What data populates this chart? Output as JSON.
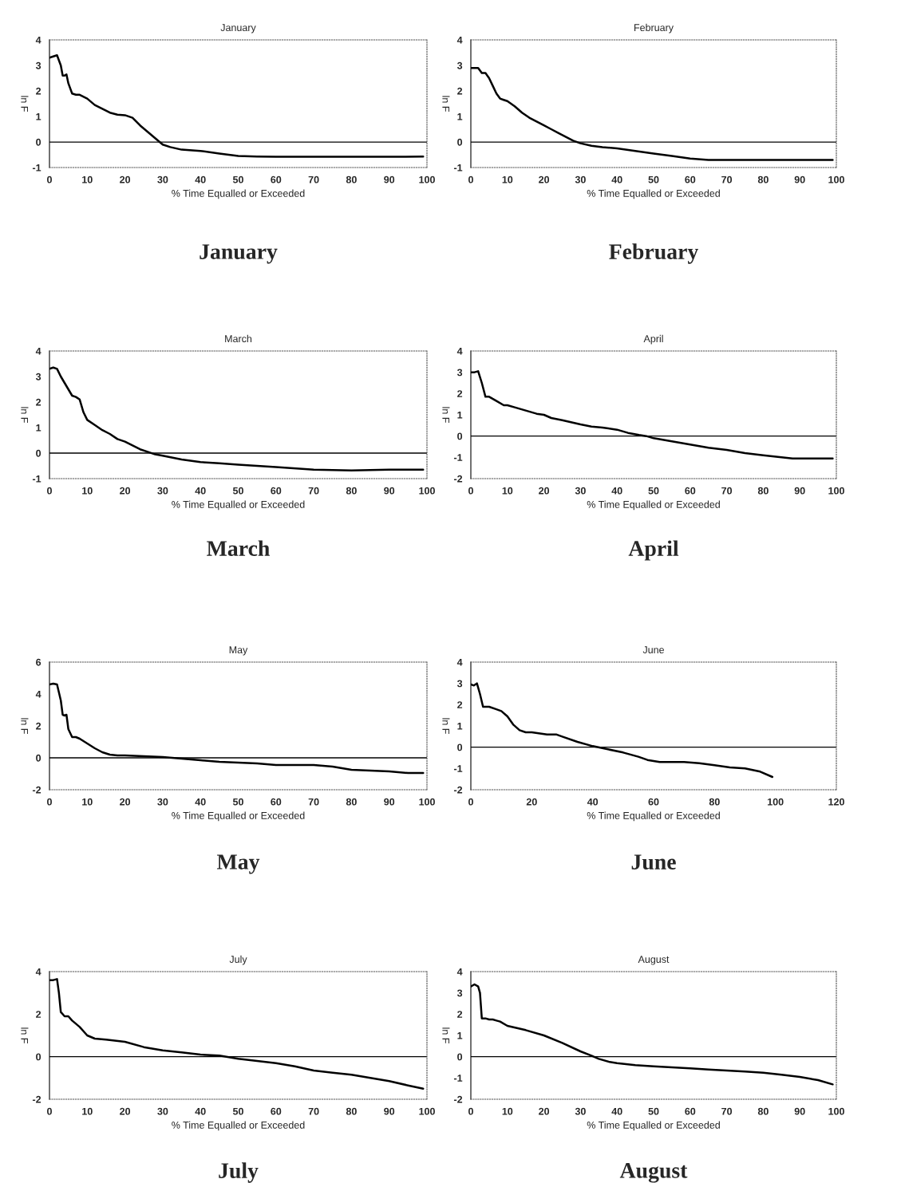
{
  "chart_data": [
    {
      "type": "line",
      "title": "January",
      "xlabel": "% Time Equalled or Exceeded",
      "ylabel": "ln F",
      "xlim": [
        0,
        100
      ],
      "xticks": [
        0,
        10,
        20,
        30,
        40,
        50,
        60,
        70,
        80,
        90,
        100
      ],
      "ylim": [
        -1,
        4
      ],
      "yticks": [
        -1,
        0,
        1,
        2,
        3,
        4
      ],
      "ref_lines": [
        {
          "axis": "y",
          "value": 0,
          "color": "#000000"
        }
      ],
      "annotations": [
        "January"
      ],
      "x": [
        0,
        1,
        2,
        3,
        3.5,
        4,
        4.5,
        5,
        6,
        7,
        8,
        10,
        12,
        14,
        16,
        18,
        20,
        22,
        24,
        26,
        28,
        30,
        32,
        35,
        40,
        45,
        50,
        55,
        60,
        70,
        80,
        90,
        99
      ],
      "series": [
        {
          "color": "#000000",
          "values": [
            3.3,
            3.35,
            3.4,
            3.0,
            2.6,
            2.6,
            2.65,
            2.3,
            1.9,
            1.85,
            1.85,
            1.7,
            1.45,
            1.3,
            1.15,
            1.07,
            1.05,
            0.95,
            0.65,
            0.4,
            0.15,
            -0.1,
            -0.2,
            -0.3,
            -0.35,
            -0.45,
            -0.55,
            -0.57,
            -0.58,
            -0.58,
            -0.58,
            -0.58,
            -0.57
          ]
        }
      ]
    },
    {
      "type": "line",
      "title": "February",
      "xlabel": "% Time Equalled or Exceeded",
      "ylabel": "ln F",
      "xlim": [
        0,
        100
      ],
      "xticks": [
        0,
        10,
        20,
        30,
        40,
        50,
        60,
        70,
        80,
        90,
        100
      ],
      "ylim": [
        -1,
        4
      ],
      "yticks": [
        -1,
        0,
        1,
        2,
        3,
        4
      ],
      "ref_lines": [
        {
          "axis": "y",
          "value": 0,
          "color": "#000000"
        }
      ],
      "annotations": [
        "February"
      ],
      "x": [
        0,
        1,
        2,
        3,
        4,
        5,
        6,
        7,
        8,
        9,
        10,
        12,
        14,
        16,
        18,
        20,
        22,
        24,
        26,
        28,
        30,
        33,
        36,
        40,
        45,
        50,
        55,
        60,
        65,
        70,
        80,
        90,
        99
      ],
      "series": [
        {
          "color": "#000000",
          "values": [
            2.9,
            2.9,
            2.9,
            2.7,
            2.7,
            2.5,
            2.2,
            1.9,
            1.7,
            1.65,
            1.6,
            1.4,
            1.15,
            0.95,
            0.8,
            0.65,
            0.5,
            0.35,
            0.2,
            0.05,
            -0.05,
            -0.15,
            -0.2,
            -0.25,
            -0.35,
            -0.45,
            -0.55,
            -0.65,
            -0.7,
            -0.7,
            -0.7,
            -0.7,
            -0.7
          ]
        }
      ]
    },
    {
      "type": "line",
      "title": "March",
      "xlabel": "% Time Equalled or Exceeded",
      "ylabel": "ln F",
      "xlim": [
        0,
        100
      ],
      "xticks": [
        0,
        10,
        20,
        30,
        40,
        50,
        60,
        70,
        80,
        90,
        100
      ],
      "ylim": [
        -1,
        4
      ],
      "yticks": [
        -1,
        0,
        1,
        2,
        3,
        4
      ],
      "ref_lines": [
        {
          "axis": "y",
          "value": 0,
          "color": "#000000"
        }
      ],
      "annotations": [
        "March"
      ],
      "x": [
        0,
        1,
        2,
        3,
        4,
        5,
        6,
        7,
        8,
        9,
        10,
        12,
        14,
        16,
        18,
        20,
        22,
        24,
        26,
        28,
        30,
        35,
        40,
        45,
        50,
        55,
        60,
        70,
        80,
        90,
        99
      ],
      "series": [
        {
          "color": "#000000",
          "values": [
            3.3,
            3.35,
            3.3,
            3.0,
            2.75,
            2.5,
            2.25,
            2.2,
            2.1,
            1.6,
            1.3,
            1.1,
            0.9,
            0.75,
            0.55,
            0.45,
            0.3,
            0.15,
            0.05,
            -0.05,
            -0.1,
            -0.25,
            -0.35,
            -0.4,
            -0.45,
            -0.5,
            -0.55,
            -0.65,
            -0.68,
            -0.65,
            -0.65
          ]
        }
      ]
    },
    {
      "type": "line",
      "title": "April",
      "xlabel": "% Time Equalled or Exceeded",
      "ylabel": "ln F",
      "xlim": [
        0,
        100
      ],
      "xticks": [
        0,
        10,
        20,
        30,
        40,
        50,
        60,
        70,
        80,
        90,
        100
      ],
      "ylim": [
        -2,
        4
      ],
      "yticks": [
        -2,
        -1,
        0,
        1,
        2,
        3,
        4
      ],
      "ref_lines": [
        {
          "axis": "y",
          "value": 0,
          "color": "#000000"
        }
      ],
      "annotations": [
        "April"
      ],
      "x": [
        0,
        1,
        2,
        3,
        4,
        5,
        7,
        9,
        10,
        12,
        15,
        18,
        20,
        22,
        25,
        30,
        33,
        36,
        40,
        43,
        46,
        48,
        50,
        55,
        60,
        65,
        70,
        75,
        80,
        85,
        88,
        90,
        95,
        99
      ],
      "series": [
        {
          "color": "#000000",
          "values": [
            3.0,
            3.0,
            3.05,
            2.5,
            1.85,
            1.85,
            1.65,
            1.45,
            1.45,
            1.35,
            1.2,
            1.05,
            1.0,
            0.85,
            0.75,
            0.55,
            0.45,
            0.4,
            0.3,
            0.15,
            0.05,
            0.0,
            -0.1,
            -0.25,
            -0.4,
            -0.55,
            -0.65,
            -0.8,
            -0.9,
            -1.0,
            -1.05,
            -1.05,
            -1.05,
            -1.05
          ]
        }
      ]
    },
    {
      "type": "line",
      "title": "May",
      "xlabel": "% Time Equalled or Exceeded",
      "ylabel": "ln F",
      "xlim": [
        0,
        100
      ],
      "xticks": [
        0,
        10,
        20,
        30,
        40,
        50,
        60,
        70,
        80,
        90,
        100
      ],
      "ylim": [
        -2,
        6
      ],
      "yticks": [
        -2,
        0,
        2,
        4,
        6
      ],
      "ref_lines": [
        {
          "axis": "y",
          "value": 0,
          "color": "#000000"
        }
      ],
      "annotations": [
        "May"
      ],
      "x": [
        0,
        1,
        2,
        3,
        3.5,
        4,
        4.5,
        5,
        6,
        7,
        8,
        10,
        12,
        14,
        16,
        18,
        20,
        25,
        30,
        35,
        40,
        45,
        50,
        55,
        60,
        65,
        70,
        75,
        80,
        85,
        90,
        95,
        99
      ],
      "series": [
        {
          "color": "#000000",
          "values": [
            4.6,
            4.65,
            4.6,
            3.6,
            2.7,
            2.65,
            2.7,
            1.8,
            1.3,
            1.3,
            1.2,
            0.9,
            0.6,
            0.35,
            0.2,
            0.15,
            0.15,
            0.1,
            0.05,
            -0.05,
            -0.15,
            -0.25,
            -0.3,
            -0.35,
            -0.45,
            -0.45,
            -0.45,
            -0.55,
            -0.75,
            -0.8,
            -0.85,
            -0.95,
            -0.95
          ]
        }
      ]
    },
    {
      "type": "line",
      "title": "June",
      "xlabel": "% Time Equalled or Exceeded",
      "ylabel": "ln F",
      "xlim": [
        0,
        120
      ],
      "xticks": [
        0,
        20,
        40,
        60,
        80,
        100,
        120
      ],
      "ylim": [
        -2,
        4
      ],
      "yticks": [
        -2,
        -1,
        0,
        1,
        2,
        3,
        4
      ],
      "ref_lines": [
        {
          "axis": "y",
          "value": 0,
          "color": "#000000"
        }
      ],
      "annotations": [
        "June"
      ],
      "x": [
        0,
        1,
        2,
        3,
        4,
        6,
        8,
        10,
        12,
        14,
        16,
        18,
        20,
        25,
        28,
        30,
        35,
        40,
        45,
        50,
        55,
        58,
        62,
        65,
        70,
        75,
        80,
        85,
        90,
        95,
        99
      ],
      "series": [
        {
          "color": "#000000",
          "values": [
            2.95,
            2.9,
            3.0,
            2.5,
            1.9,
            1.9,
            1.8,
            1.7,
            1.45,
            1.05,
            0.8,
            0.7,
            0.7,
            0.6,
            0.6,
            0.5,
            0.25,
            0.05,
            -0.1,
            -0.25,
            -0.45,
            -0.6,
            -0.7,
            -0.7,
            -0.7,
            -0.75,
            -0.85,
            -0.95,
            -1.0,
            -1.15,
            -1.4
          ]
        }
      ]
    },
    {
      "type": "line",
      "title": "July",
      "xlabel": "% Time Equalled or Exceeded",
      "ylabel": "ln F",
      "xlim": [
        0,
        100
      ],
      "xticks": [
        0,
        10,
        20,
        30,
        40,
        50,
        60,
        70,
        80,
        90,
        100
      ],
      "ylim": [
        -2,
        4
      ],
      "yticks": [
        -2,
        0,
        2,
        4
      ],
      "ref_lines": [
        {
          "axis": "y",
          "value": 0,
          "color": "#000000"
        }
      ],
      "annotations": [
        "July"
      ],
      "x": [
        0,
        1,
        2,
        2.5,
        3,
        4,
        5,
        6,
        8,
        10,
        12,
        15,
        20,
        25,
        30,
        35,
        40,
        45,
        50,
        55,
        60,
        65,
        70,
        75,
        80,
        85,
        90,
        95,
        99
      ],
      "series": [
        {
          "color": "#000000",
          "values": [
            3.6,
            3.6,
            3.65,
            3.0,
            2.1,
            1.9,
            1.9,
            1.7,
            1.4,
            1.0,
            0.85,
            0.8,
            0.7,
            0.45,
            0.3,
            0.2,
            0.1,
            0.05,
            -0.1,
            -0.2,
            -0.3,
            -0.45,
            -0.65,
            -0.75,
            -0.85,
            -1.0,
            -1.15,
            -1.35,
            -1.5
          ]
        }
      ]
    },
    {
      "type": "line",
      "title": "August",
      "xlabel": "% Time Equalled or Exceeded",
      "ylabel": "ln F",
      "xlim": [
        0,
        100
      ],
      "xticks": [
        0,
        10,
        20,
        30,
        40,
        50,
        60,
        70,
        80,
        90,
        100
      ],
      "ylim": [
        -2,
        4
      ],
      "yticks": [
        -2,
        -1,
        0,
        1,
        2,
        3,
        4
      ],
      "ref_lines": [
        {
          "axis": "y",
          "value": 0,
          "color": "#000000"
        }
      ],
      "annotations": [
        "August"
      ],
      "x": [
        0,
        1,
        2,
        2.5,
        3,
        4,
        5,
        6,
        7,
        8,
        10,
        15,
        20,
        25,
        30,
        33,
        35,
        38,
        40,
        45,
        50,
        55,
        60,
        65,
        70,
        75,
        80,
        85,
        90,
        95,
        99
      ],
      "series": [
        {
          "color": "#000000",
          "values": [
            3.3,
            3.4,
            3.3,
            3.0,
            1.8,
            1.8,
            1.75,
            1.75,
            1.7,
            1.65,
            1.45,
            1.25,
            1.0,
            0.65,
            0.25,
            0.05,
            -0.1,
            -0.25,
            -0.3,
            -0.4,
            -0.45,
            -0.5,
            -0.55,
            -0.6,
            -0.65,
            -0.7,
            -0.75,
            -0.85,
            -0.95,
            -1.1,
            -1.3
          ]
        }
      ]
    }
  ]
}
